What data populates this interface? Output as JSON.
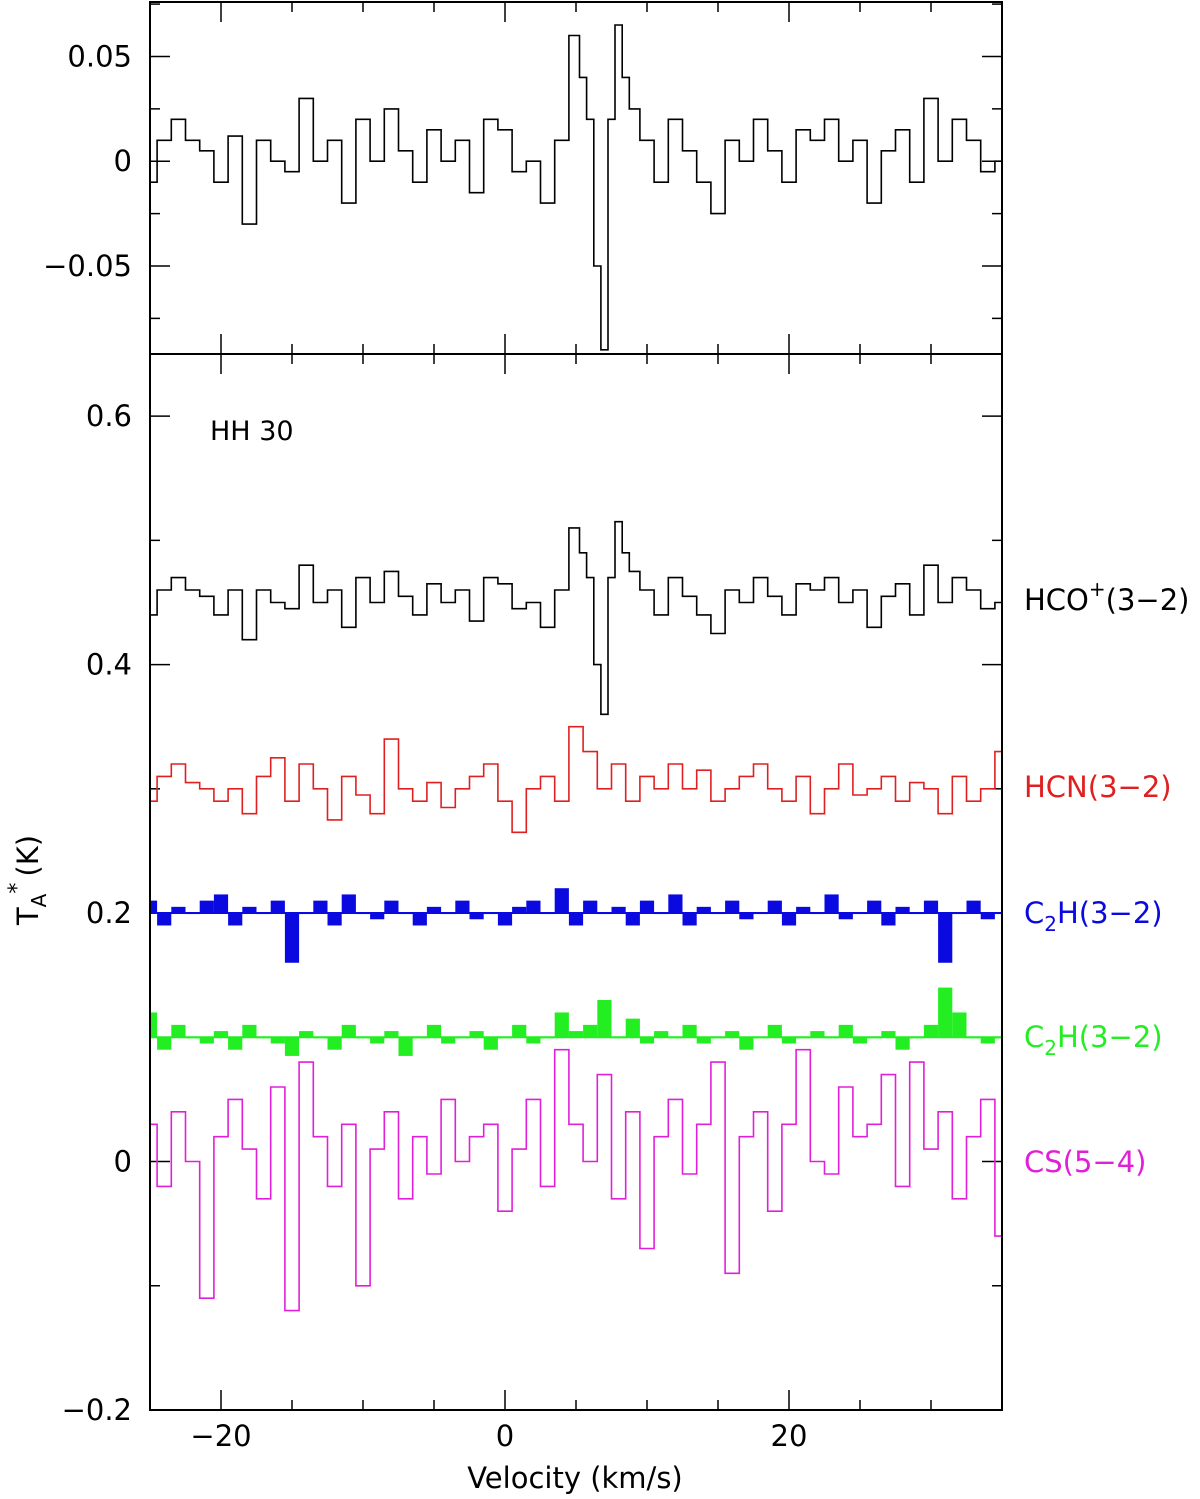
{
  "chart_data": [
    {
      "type": "line",
      "panel": "top",
      "title": "",
      "xlabel": "",
      "ylabel": "",
      "xlim": [
        -25,
        35
      ],
      "ylim": [
        -0.092,
        0.076
      ],
      "y_ticks": [
        -0.05,
        0,
        0.05
      ],
      "y_tick_labels": [
        "−0.05",
        "0",
        "0.05"
      ],
      "x_ticks": [
        -20,
        0,
        20
      ],
      "series": [
        {
          "color": "#000000",
          "style": "step",
          "x": [
            -25,
            -24,
            -23,
            -22,
            -21,
            -20,
            -19,
            -18,
            -17,
            -16,
            -15,
            -14,
            -13,
            -12,
            -11,
            -10,
            -9,
            -8,
            -7,
            -6,
            -5,
            -4,
            -3,
            -2,
            -1,
            0,
            1,
            2,
            3,
            4,
            5,
            5.5,
            6,
            6.5,
            7,
            7.5,
            8,
            8.5,
            9,
            10,
            11,
            12,
            13,
            14,
            15,
            16,
            17,
            18,
            19,
            20,
            21,
            22,
            23,
            24,
            25,
            26,
            27,
            28,
            29,
            30,
            31,
            32,
            33,
            34,
            35
          ],
          "y": [
            -0.01,
            0.01,
            0.02,
            0.01,
            0.005,
            -0.01,
            0.012,
            -0.03,
            0.01,
            0.0,
            -0.005,
            0.03,
            0.0,
            0.01,
            -0.02,
            0.02,
            0.0,
            0.025,
            0.005,
            -0.01,
            0.015,
            0.0,
            0.01,
            -0.015,
            0.02,
            0.015,
            -0.005,
            0.0,
            -0.02,
            0.01,
            0.06,
            0.04,
            0.02,
            -0.05,
            -0.09,
            0.02,
            0.065,
            0.04,
            0.025,
            0.01,
            -0.01,
            0.02,
            0.005,
            -0.01,
            -0.025,
            0.01,
            0.0,
            0.02,
            0.005,
            -0.01,
            0.015,
            0.01,
            0.02,
            0.0,
            0.01,
            -0.02,
            0.005,
            0.015,
            -0.01,
            0.03,
            0.0,
            0.02,
            0.01,
            -0.005,
            0.0
          ]
        }
      ]
    },
    {
      "type": "line",
      "panel": "bottom",
      "title": "",
      "xlabel": "Velocity (km/s)",
      "ylabel": "T",
      "ylabel_sub": "A",
      "ylabel_sup": "*",
      "ylabel_unit": "(K)",
      "xlim": [
        -25,
        35
      ],
      "ylim": [
        -0.2,
        0.65
      ],
      "x_ticks": [
        -20,
        0,
        20
      ],
      "x_tick_labels": [
        "−20",
        "0",
        "20"
      ],
      "y_ticks": [
        -0.2,
        0,
        0.2,
        0.4,
        0.6
      ],
      "y_tick_labels": [
        "−0.2",
        "0",
        "0.2",
        "0.4",
        "0.6"
      ],
      "annotation": "HH 30",
      "series": [
        {
          "name": "HCO+(3−2)",
          "label_main": "HCO",
          "label_sup": "+",
          "label_rest": "(3−2)",
          "color": "#000000",
          "style": "step",
          "offset": 0.45,
          "x": [
            -25,
            -24,
            -23,
            -22,
            -21,
            -20,
            -19,
            -18,
            -17,
            -16,
            -15,
            -14,
            -13,
            -12,
            -11,
            -10,
            -9,
            -8,
            -7,
            -6,
            -5,
            -4,
            -3,
            -2,
            -1,
            0,
            1,
            2,
            3,
            4,
            5,
            5.5,
            6,
            6.5,
            7,
            7.5,
            8,
            8.5,
            9,
            10,
            11,
            12,
            13,
            14,
            15,
            16,
            17,
            18,
            19,
            20,
            21,
            22,
            23,
            24,
            25,
            26,
            27,
            28,
            29,
            30,
            31,
            32,
            33,
            34,
            35
          ],
          "y": [
            0.44,
            0.46,
            0.47,
            0.46,
            0.455,
            0.44,
            0.46,
            0.42,
            0.46,
            0.45,
            0.445,
            0.48,
            0.45,
            0.46,
            0.43,
            0.47,
            0.45,
            0.475,
            0.455,
            0.44,
            0.465,
            0.45,
            0.46,
            0.435,
            0.47,
            0.465,
            0.445,
            0.45,
            0.43,
            0.46,
            0.51,
            0.49,
            0.47,
            0.4,
            0.36,
            0.47,
            0.515,
            0.49,
            0.475,
            0.46,
            0.44,
            0.47,
            0.455,
            0.44,
            0.425,
            0.46,
            0.45,
            0.47,
            0.455,
            0.44,
            0.465,
            0.46,
            0.47,
            0.45,
            0.46,
            0.43,
            0.455,
            0.465,
            0.44,
            0.48,
            0.45,
            0.47,
            0.46,
            0.445,
            0.45
          ]
        },
        {
          "name": "HCN(3−2)",
          "label_main": "HCN(3−2)",
          "color": "#e02020",
          "style": "step",
          "offset": 0.3,
          "x": [
            -25,
            -24,
            -23,
            -22,
            -21,
            -20,
            -19,
            -18,
            -17,
            -16,
            -15,
            -14,
            -13,
            -12,
            -11,
            -10,
            -9,
            -8,
            -7,
            -6,
            -5,
            -4,
            -3,
            -2,
            -1,
            0,
            1,
            2,
            3,
            4,
            5,
            6,
            7,
            8,
            9,
            10,
            11,
            12,
            13,
            14,
            15,
            16,
            17,
            18,
            19,
            20,
            21,
            22,
            23,
            24,
            25,
            26,
            27,
            28,
            29,
            30,
            31,
            32,
            33,
            34,
            35
          ],
          "y": [
            0.29,
            0.31,
            0.32,
            0.305,
            0.3,
            0.29,
            0.3,
            0.28,
            0.31,
            0.325,
            0.29,
            0.32,
            0.3,
            0.275,
            0.31,
            0.295,
            0.28,
            0.34,
            0.3,
            0.29,
            0.305,
            0.285,
            0.3,
            0.31,
            0.32,
            0.29,
            0.265,
            0.3,
            0.31,
            0.29,
            0.35,
            0.33,
            0.3,
            0.32,
            0.29,
            0.31,
            0.3,
            0.32,
            0.3,
            0.315,
            0.29,
            0.3,
            0.31,
            0.32,
            0.3,
            0.29,
            0.31,
            0.28,
            0.3,
            0.32,
            0.295,
            0.3,
            0.31,
            0.29,
            0.305,
            0.3,
            0.28,
            0.31,
            0.29,
            0.3,
            0.33
          ]
        },
        {
          "name": "C2H(3−2)",
          "label_main": "C",
          "label_sub": "2",
          "label_rest": "H(3−2)",
          "color": "#0a0ae0",
          "style": "filled",
          "offset": 0.2,
          "x": [
            -25,
            -24,
            -23,
            -22,
            -21,
            -20,
            -19,
            -18,
            -17,
            -16,
            -15,
            -14,
            -13,
            -12,
            -11,
            -10,
            -9,
            -8,
            -7,
            -6,
            -5,
            -4,
            -3,
            -2,
            -1,
            0,
            1,
            2,
            3,
            4,
            5,
            6,
            7,
            8,
            9,
            10,
            11,
            12,
            13,
            14,
            15,
            16,
            17,
            18,
            19,
            20,
            21,
            22,
            23,
            24,
            25,
            26,
            27,
            28,
            29,
            30,
            31,
            32,
            33,
            34,
            35
          ],
          "y": [
            0.21,
            0.19,
            0.205,
            0.2,
            0.21,
            0.215,
            0.19,
            0.205,
            0.2,
            0.21,
            0.16,
            0.2,
            0.21,
            0.19,
            0.215,
            0.2,
            0.195,
            0.21,
            0.2,
            0.19,
            0.205,
            0.2,
            0.21,
            0.195,
            0.2,
            0.19,
            0.205,
            0.21,
            0.2,
            0.22,
            0.19,
            0.21,
            0.2,
            0.205,
            0.19,
            0.21,
            0.2,
            0.215,
            0.19,
            0.205,
            0.2,
            0.21,
            0.195,
            0.2,
            0.21,
            0.19,
            0.205,
            0.2,
            0.215,
            0.195,
            0.2,
            0.21,
            0.19,
            0.205,
            0.2,
            0.21,
            0.16,
            0.2,
            0.21,
            0.195,
            0.2
          ]
        },
        {
          "name": "C2H(3−2)",
          "label_main": "C",
          "label_sub": "2",
          "label_rest": "H(3−2)",
          "color": "#22ee22",
          "style": "filled",
          "offset": 0.1,
          "x": [
            -25,
            -24,
            -23,
            -22,
            -21,
            -20,
            -19,
            -18,
            -17,
            -16,
            -15,
            -14,
            -13,
            -12,
            -11,
            -10,
            -9,
            -8,
            -7,
            -6,
            -5,
            -4,
            -3,
            -2,
            -1,
            0,
            1,
            2,
            3,
            4,
            5,
            6,
            7,
            8,
            9,
            10,
            11,
            12,
            13,
            14,
            15,
            16,
            17,
            18,
            19,
            20,
            21,
            22,
            23,
            24,
            25,
            26,
            27,
            28,
            29,
            30,
            31,
            32,
            33,
            34,
            35
          ],
          "y": [
            0.12,
            0.09,
            0.11,
            0.1,
            0.095,
            0.105,
            0.09,
            0.11,
            0.1,
            0.095,
            0.085,
            0.105,
            0.1,
            0.09,
            0.11,
            0.1,
            0.095,
            0.105,
            0.085,
            0.1,
            0.11,
            0.095,
            0.1,
            0.105,
            0.09,
            0.1,
            0.11,
            0.095,
            0.1,
            0.12,
            0.105,
            0.11,
            0.13,
            0.1,
            0.115,
            0.095,
            0.105,
            0.1,
            0.11,
            0.095,
            0.1,
            0.105,
            0.09,
            0.1,
            0.11,
            0.095,
            0.1,
            0.105,
            0.1,
            0.11,
            0.095,
            0.1,
            0.105,
            0.09,
            0.1,
            0.11,
            0.14,
            0.12,
            0.1,
            0.095,
            0.1
          ]
        },
        {
          "name": "CS(5−4)",
          "label_main": "CS(5−4)",
          "color": "#e020d8",
          "style": "step",
          "offset": 0.0,
          "x": [
            -25,
            -24,
            -23,
            -22,
            -21,
            -20,
            -19,
            -18,
            -17,
            -16,
            -15,
            -14,
            -13,
            -12,
            -11,
            -10,
            -9,
            -8,
            -7,
            -6,
            -5,
            -4,
            -3,
            -2,
            -1,
            0,
            1,
            2,
            3,
            4,
            5,
            6,
            7,
            8,
            9,
            10,
            11,
            12,
            13,
            14,
            15,
            16,
            17,
            18,
            19,
            20,
            21,
            22,
            23,
            24,
            25,
            26,
            27,
            28,
            29,
            30,
            31,
            32,
            33,
            34,
            35
          ],
          "y": [
            0.03,
            -0.02,
            0.04,
            0.0,
            -0.11,
            0.02,
            0.05,
            0.01,
            -0.03,
            0.06,
            -0.12,
            0.08,
            0.02,
            -0.02,
            0.03,
            -0.1,
            0.01,
            0.04,
            -0.03,
            0.02,
            -0.01,
            0.05,
            0.0,
            0.02,
            0.03,
            -0.04,
            0.01,
            0.05,
            -0.02,
            0.09,
            0.03,
            0.0,
            0.07,
            -0.03,
            0.04,
            -0.07,
            0.02,
            0.05,
            -0.01,
            0.03,
            0.08,
            -0.09,
            0.02,
            0.04,
            -0.04,
            0.03,
            0.09,
            0.0,
            -0.01,
            0.06,
            0.02,
            0.03,
            0.07,
            -0.02,
            0.08,
            0.01,
            0.04,
            -0.03,
            0.02,
            0.05,
            -0.06
          ]
        }
      ]
    }
  ]
}
